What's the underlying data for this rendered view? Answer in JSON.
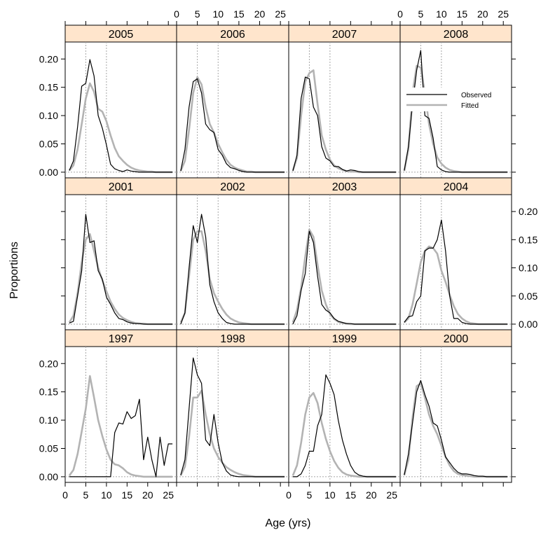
{
  "chart_data": {
    "type": "line",
    "layout": "lattice 3 rows x 4 columns",
    "xlabel": "Age (yrs)",
    "ylabel": "Proportions",
    "xlim": [
      0,
      27
    ],
    "ylim": [
      -0.01,
      0.23
    ],
    "x_ticks": [
      0,
      5,
      10,
      15,
      20,
      25
    ],
    "y_ticks": [
      0.0,
      0.05,
      0.1,
      0.15,
      0.2
    ],
    "x_tick_labels": [
      "0",
      "5",
      "10",
      "15",
      "20",
      "25"
    ],
    "y_tick_labels": [
      "0.00",
      "0.05",
      "0.10",
      "0.15",
      "0.20"
    ],
    "reference_lines_x": [
      5,
      10
    ],
    "grid": false,
    "legend": {
      "placement": "inside panel 2008, top",
      "entries": [
        {
          "label": "Observed",
          "color": "#000000"
        },
        {
          "label": "Fitted",
          "color": "#b3b3b3"
        }
      ]
    },
    "colors": {
      "observed": "#000000",
      "fitted": "#b3b3b3",
      "strip": "#ffe5cc",
      "reference": "#a6a6a6"
    },
    "x": [
      1,
      2,
      3,
      4,
      5,
      6,
      7,
      8,
      9,
      10,
      11,
      12,
      13,
      14,
      15,
      16,
      17,
      18,
      19,
      20,
      21,
      22,
      23,
      24,
      25,
      26
    ],
    "panels": [
      {
        "year": "2005",
        "observed": [
          0.003,
          0.02,
          0.08,
          0.152,
          0.157,
          0.199,
          0.17,
          0.1,
          0.078,
          0.048,
          0.014,
          0.006,
          0.003,
          0.001,
          0.004,
          0.002,
          0.001,
          0.0,
          0.0,
          0.0,
          0.0,
          0.0,
          0.0,
          0.0,
          0.0,
          0.0
        ],
        "fitted": [
          0.003,
          0.012,
          0.04,
          0.085,
          0.13,
          0.157,
          0.142,
          0.112,
          0.107,
          0.09,
          0.065,
          0.043,
          0.028,
          0.02,
          0.013,
          0.008,
          0.005,
          0.003,
          0.002,
          0.001,
          0.001,
          0.0,
          0.0,
          0.0,
          0.0,
          0.0
        ]
      },
      {
        "year": "2006",
        "observed": [
          0.002,
          0.04,
          0.115,
          0.16,
          0.165,
          0.14,
          0.085,
          0.075,
          0.07,
          0.04,
          0.03,
          0.015,
          0.008,
          0.006,
          0.003,
          0.001,
          0.0,
          0.0,
          0.0,
          0.0,
          0.0,
          0.0,
          0.0,
          0.0,
          0.0,
          0.0
        ],
        "fitted": [
          0.002,
          0.02,
          0.075,
          0.14,
          0.168,
          0.155,
          0.115,
          0.085,
          0.07,
          0.05,
          0.035,
          0.022,
          0.013,
          0.008,
          0.005,
          0.003,
          0.001,
          0.001,
          0.0,
          0.0,
          0.0,
          0.0,
          0.0,
          0.0,
          0.0,
          0.0
        ]
      },
      {
        "year": "2007",
        "observed": [
          0.002,
          0.03,
          0.13,
          0.168,
          0.165,
          0.115,
          0.1,
          0.045,
          0.025,
          0.02,
          0.01,
          0.01,
          0.005,
          0.002,
          0.004,
          0.003,
          0.001,
          0.0,
          0.0,
          0.0,
          0.0,
          0.0,
          0.0,
          0.0,
          0.0,
          0.0
        ],
        "fitted": [
          0.003,
          0.025,
          0.1,
          0.16,
          0.175,
          0.18,
          0.12,
          0.065,
          0.04,
          0.022,
          0.012,
          0.007,
          0.004,
          0.002,
          0.001,
          0.001,
          0.0,
          0.0,
          0.0,
          0.0,
          0.0,
          0.0,
          0.0,
          0.0,
          0.0,
          0.0
        ],
        "fitted_x": [
          1,
          2,
          3,
          4,
          5,
          6,
          7,
          8,
          9,
          10,
          11,
          12,
          13,
          14,
          15,
          16,
          17,
          18,
          19,
          20,
          21,
          22,
          23,
          24,
          25,
          26
        ]
      },
      {
        "year": "2008",
        "observed": [
          0.003,
          0.045,
          0.12,
          0.18,
          0.215,
          0.1,
          0.095,
          0.06,
          0.01,
          0.004,
          0.001,
          0.0,
          0.0,
          0.0,
          0.0,
          0.0,
          0.0,
          0.0,
          0.0,
          0.0,
          0.0,
          0.0,
          0.0,
          0.0,
          0.0,
          0.0
        ],
        "fitted": [
          0.002,
          0.04,
          0.14,
          0.188,
          0.185,
          0.14,
          0.085,
          0.05,
          0.026,
          0.015,
          0.008,
          0.004,
          0.002,
          0.001,
          0.0,
          0.0,
          0.0,
          0.0,
          0.0,
          0.0,
          0.0,
          0.0,
          0.0,
          0.0,
          0.0,
          0.0
        ],
        "obs_x": [
          2,
          3,
          4,
          5,
          6,
          7,
          8,
          9,
          10,
          11,
          12,
          13,
          14,
          15,
          16,
          17,
          18,
          19,
          20,
          21,
          22,
          23,
          24,
          25,
          26,
          27
        ],
        "fit_x": [
          2,
          3,
          4,
          5,
          6,
          7,
          8,
          9,
          10,
          11,
          12,
          13,
          14,
          15,
          16,
          17,
          18,
          19,
          20,
          21,
          22,
          23,
          24,
          25,
          26,
          27
        ]
      },
      {
        "year": "2001",
        "observed": [
          0.002,
          0.005,
          0.05,
          0.095,
          0.195,
          0.145,
          0.148,
          0.095,
          0.08,
          0.048,
          0.035,
          0.02,
          0.01,
          0.008,
          0.004,
          0.002,
          0.001,
          0.001,
          0.0,
          0.0,
          0.0,
          0.0,
          0.0,
          0.0,
          0.0,
          0.0
        ],
        "fitted": [
          0.003,
          0.015,
          0.055,
          0.11,
          0.15,
          0.16,
          0.13,
          0.1,
          0.078,
          0.058,
          0.04,
          0.027,
          0.017,
          0.011,
          0.007,
          0.004,
          0.002,
          0.001,
          0.001,
          0.0,
          0.0,
          0.0,
          0.0,
          0.0,
          0.0,
          0.0
        ]
      },
      {
        "year": "2002",
        "observed": [
          0.0,
          0.02,
          0.1,
          0.175,
          0.145,
          0.195,
          0.155,
          0.07,
          0.04,
          0.02,
          0.01,
          0.003,
          0.001,
          0.0,
          0.0,
          0.0,
          0.0,
          0.0,
          0.0,
          0.0,
          0.0,
          0.0,
          0.0,
          0.0,
          0.0,
          0.0
        ],
        "fitted": [
          0.003,
          0.02,
          0.085,
          0.15,
          0.165,
          0.165,
          0.13,
          0.08,
          0.055,
          0.04,
          0.027,
          0.017,
          0.01,
          0.006,
          0.003,
          0.002,
          0.001,
          0.0,
          0.0,
          0.0,
          0.0,
          0.0,
          0.0,
          0.0,
          0.0,
          0.0
        ]
      },
      {
        "year": "2003",
        "observed": [
          0.0,
          0.015,
          0.06,
          0.09,
          0.165,
          0.145,
          0.085,
          0.035,
          0.025,
          0.02,
          0.01,
          0.005,
          0.003,
          0.001,
          0.001,
          0.0,
          0.0,
          0.0,
          0.0,
          0.0,
          0.0,
          0.0,
          0.0,
          0.0,
          0.0,
          0.0
        ],
        "fitted": [
          0.003,
          0.025,
          0.065,
          0.12,
          0.168,
          0.155,
          0.105,
          0.06,
          0.035,
          0.018,
          0.009,
          0.004,
          0.002,
          0.001,
          0.0,
          0.0,
          0.0,
          0.0,
          0.0,
          0.0,
          0.0,
          0.0,
          0.0,
          0.0,
          0.0,
          0.0
        ],
        "obs_x": [
          1,
          2,
          3,
          4,
          5,
          6,
          7,
          8,
          9,
          10,
          11,
          12,
          13,
          14,
          15,
          16,
          17,
          18,
          19,
          20,
          21,
          22,
          23,
          24,
          25,
          26
        ],
        "fit_x": [
          1,
          2,
          3,
          4,
          5,
          6,
          7,
          8,
          9,
          10,
          11,
          12,
          13,
          14,
          15,
          16,
          17,
          18,
          19,
          20,
          21,
          22,
          23,
          24,
          25,
          26
        ]
      },
      {
        "year": "2004",
        "observed": [
          0.003,
          0.013,
          0.015,
          0.04,
          0.05,
          0.13,
          0.135,
          0.135,
          0.15,
          0.185,
          0.13,
          0.05,
          0.01,
          0.01,
          0.003,
          0.001,
          0.0,
          0.0,
          0.0,
          0.0,
          0.0,
          0.0,
          0.0,
          0.0,
          0.0,
          0.0
        ],
        "fitted": [
          0.003,
          0.01,
          0.035,
          0.072,
          0.11,
          0.13,
          0.138,
          0.135,
          0.125,
          0.095,
          0.075,
          0.052,
          0.032,
          0.018,
          0.01,
          0.005,
          0.002,
          0.001,
          0.0,
          0.0,
          0.0,
          0.0,
          0.0,
          0.0,
          0.0,
          0.0
        ]
      },
      {
        "year": "1997",
        "observed": [
          0.0,
          0.0,
          0.0,
          0.0,
          0.0,
          0.0,
          0.0,
          0.0,
          0.0,
          0.0,
          0.0,
          0.078,
          0.095,
          0.093,
          0.115,
          0.103,
          0.108,
          0.137,
          0.03,
          0.07,
          0.03,
          0.0,
          0.07,
          0.02,
          0.058,
          0.058
        ],
        "fitted": [
          0.002,
          0.012,
          0.04,
          0.08,
          0.12,
          0.178,
          0.14,
          0.1,
          0.072,
          0.048,
          0.03,
          0.022,
          0.02,
          0.015,
          0.008,
          0.004,
          0.002,
          0.001,
          0.0,
          0.0,
          0.0,
          0.0,
          0.0,
          0.0,
          0.0,
          0.0
        ]
      },
      {
        "year": "1998",
        "observed": [
          0.003,
          0.03,
          0.12,
          0.21,
          0.18,
          0.165,
          0.065,
          0.055,
          0.11,
          0.06,
          0.025,
          0.01,
          0.003,
          0.001,
          0.0,
          0.0,
          0.0,
          0.0,
          0.0,
          0.0,
          0.0,
          0.0,
          0.0,
          0.0,
          0.0,
          0.0
        ],
        "fitted": [
          0.002,
          0.018,
          0.07,
          0.14,
          0.14,
          0.152,
          0.11,
          0.075,
          0.05,
          0.035,
          0.025,
          0.017,
          0.012,
          0.008,
          0.005,
          0.003,
          0.002,
          0.001,
          0.0,
          0.0,
          0.0,
          0.0,
          0.0,
          0.0,
          0.0,
          0.0
        ]
      },
      {
        "year": "1999",
        "observed": [
          0.0,
          0.0,
          0.005,
          0.02,
          0.045,
          0.045,
          0.09,
          0.11,
          0.18,
          0.165,
          0.145,
          0.1,
          0.065,
          0.04,
          0.02,
          0.008,
          0.003,
          0.001,
          0.0,
          0.0,
          0.0,
          0.0,
          0.0,
          0.0,
          0.0,
          0.0
        ],
        "fitted": [
          0.002,
          0.02,
          0.06,
          0.11,
          0.14,
          0.148,
          0.13,
          0.095,
          0.067,
          0.045,
          0.028,
          0.016,
          0.008,
          0.004,
          0.002,
          0.001,
          0.0,
          0.0,
          0.0,
          0.0,
          0.0,
          0.0,
          0.0,
          0.0,
          0.0,
          0.0
        ]
      },
      {
        "year": "2000",
        "observed": [
          0.003,
          0.04,
          0.095,
          0.15,
          0.17,
          0.145,
          0.125,
          0.095,
          0.09,
          0.065,
          0.035,
          0.025,
          0.015,
          0.008,
          0.005,
          0.005,
          0.004,
          0.002,
          0.001,
          0.001,
          0.0,
          0.0,
          0.0,
          0.0,
          0.0,
          0.0
        ],
        "fitted": [
          0.003,
          0.03,
          0.105,
          0.16,
          0.165,
          0.14,
          0.11,
          0.09,
          0.075,
          0.055,
          0.035,
          0.02,
          0.01,
          0.005,
          0.003,
          0.002,
          0.001,
          0.0,
          0.0,
          0.0,
          0.0,
          0.0,
          0.0,
          0.0,
          0.0,
          0.0
        ]
      }
    ]
  }
}
